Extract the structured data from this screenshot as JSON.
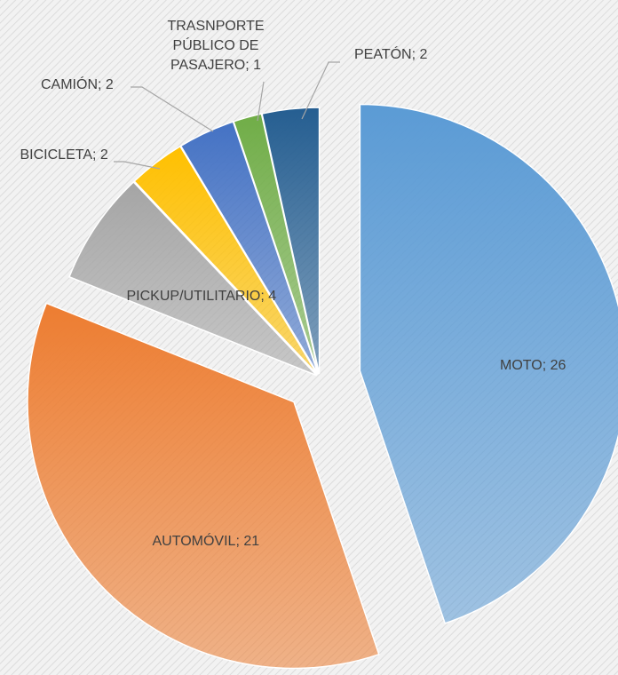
{
  "chart_data": {
    "type": "pie",
    "values": [
      26,
      21,
      4,
      2,
      2,
      1,
      2
    ],
    "value_labels": [
      "MOTO; 26",
      "AUTOMÓVIL; 21",
      "PICKUP/UTILITARIO; 4",
      "BICICLETA; 2",
      "CAMIÓN; 2",
      "TRASNPORTE PÚBLICO DE PASAJERO; 1",
      "PEATÓN; 2"
    ],
    "colors": [
      "#5b9bd5",
      "#ed7d31",
      "#a5a5a5",
      "#ffc000",
      "#4472c4",
      "#70ad47",
      "#255e91"
    ]
  }
}
